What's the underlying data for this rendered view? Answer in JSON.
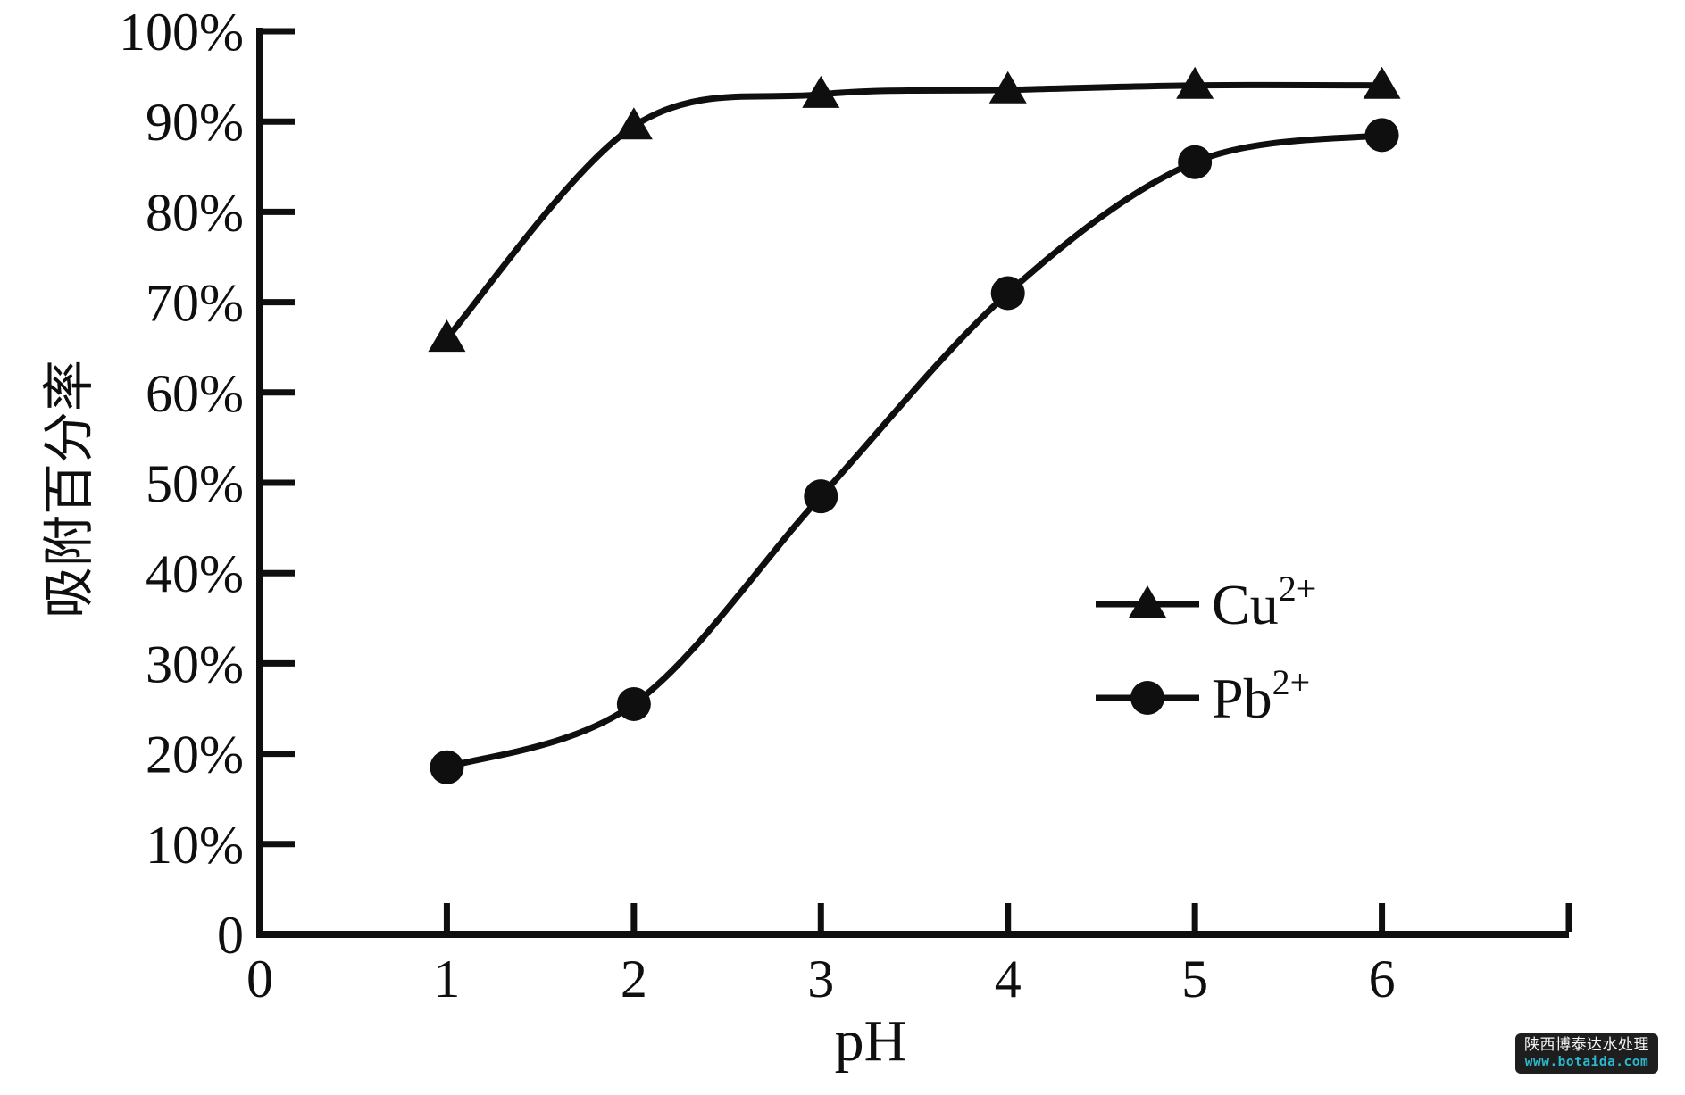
{
  "chart_data": {
    "type": "line",
    "title": "",
    "xlabel": "pH",
    "ylabel": "吸附百分率",
    "xlim": [
      0,
      7
    ],
    "ylim": [
      0,
      100
    ],
    "grid": false,
    "legend_position": "center-right",
    "background": "#ffffff",
    "axis_color": "#0f0f0f",
    "line_color": "#0f0f0f",
    "x_ticks": [
      0,
      1,
      2,
      3,
      4,
      5,
      6,
      7
    ],
    "x_tick_labels": [
      "0",
      "1",
      "2",
      "3",
      "4",
      "5",
      "6",
      ""
    ],
    "y_ticks": [
      0,
      10,
      20,
      30,
      40,
      50,
      60,
      70,
      80,
      90,
      100
    ],
    "y_tick_labels": [
      "0",
      "10%",
      "20%",
      "30%",
      "40%",
      "50%",
      "60%",
      "70%",
      "80%",
      "90%",
      "100%"
    ],
    "x": [
      1,
      2,
      3,
      4,
      5,
      6
    ],
    "series": [
      {
        "name": "Cu2+",
        "label_base": "Cu",
        "label_sup": "2+",
        "marker": "triangle",
        "values": [
          66,
          89.5,
          93,
          93.5,
          94,
          94
        ]
      },
      {
        "name": "Pb2+",
        "label_base": "Pb",
        "label_sup": "2+",
        "marker": "circle",
        "values": [
          18.5,
          25.5,
          48.5,
          71,
          85.5,
          88.5
        ]
      }
    ]
  },
  "watermark": {
    "line1": "陕西博泰达水处理",
    "line2": "www.botaida.com",
    "box_color": "#1e1e1e",
    "line1_color": "#f5f5f5",
    "line2_color": "#2ab9cf"
  }
}
